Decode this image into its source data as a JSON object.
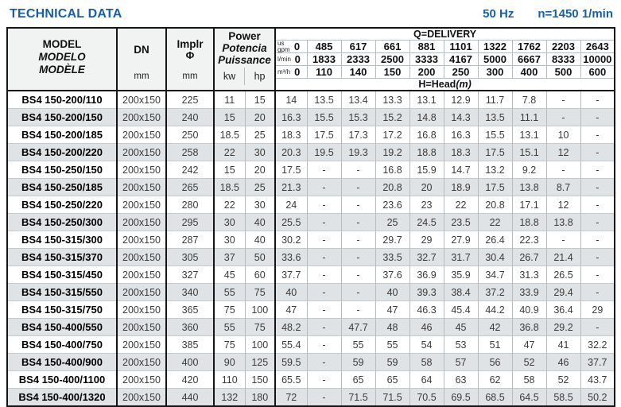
{
  "page": {
    "title": "TECHNICAL DATA",
    "frequency": "50 Hz",
    "speed": "n=1450 1/min"
  },
  "header": {
    "model_labels": [
      "MODEL",
      "MODELO",
      "MODÈLE"
    ],
    "dn_label": "DN",
    "dn_unit": "mm",
    "impeller_label": "Implr",
    "impeller_symbol": "Φ",
    "impeller_unit": "mm",
    "power_labels": [
      "Power",
      "Potencia",
      "Puissance"
    ],
    "power_units": [
      "kw",
      "hp"
    ]
  },
  "delivery": {
    "title": "Q=DELIVERY",
    "unit_rows": [
      {
        "label_line1": "us",
        "label_line2": "gpm",
        "zero": "0",
        "values": [
          "485",
          "617",
          "661",
          "881",
          "1101",
          "1322",
          "1762",
          "2203",
          "2643"
        ]
      },
      {
        "label_line1": "",
        "label_line2": "l/min",
        "zero": "0",
        "values": [
          "1833",
          "2333",
          "2500",
          "3333",
          "4167",
          "5000",
          "6667",
          "8333",
          "10000"
        ]
      },
      {
        "label_line1": "",
        "label_line2": "m³/h",
        "zero": "0",
        "values": [
          "110",
          "140",
          "150",
          "200",
          "250",
          "300",
          "400",
          "500",
          "600"
        ]
      }
    ],
    "head_label": "H=Head",
    "head_unit": "(m)"
  },
  "colors": {
    "accent_blue": "#1660a8",
    "stripe": "#dfe3e6",
    "grid_thin": "#b6bcc0",
    "grid_thick": "#151515"
  },
  "rows": [
    {
      "model": "BS4 150-200/110",
      "dn": "200x150",
      "impeller": "225",
      "kw": "11",
      "hp": "15",
      "head": [
        "14",
        "13.5",
        "13.4",
        "13.3",
        "13.1",
        "12.9",
        "11.7",
        "7.8",
        "-",
        "-"
      ]
    },
    {
      "model": "BS4 150-200/150",
      "dn": "200x150",
      "impeller": "240",
      "kw": "15",
      "hp": "20",
      "head": [
        "16.3",
        "15.5",
        "15.3",
        "15.2",
        "14.8",
        "14.3",
        "13.5",
        "11.1",
        "-",
        "-"
      ]
    },
    {
      "model": "BS4 150-200/185",
      "dn": "200x150",
      "impeller": "250",
      "kw": "18.5",
      "hp": "25",
      "head": [
        "18.3",
        "17.5",
        "17.3",
        "17.2",
        "16.8",
        "16.3",
        "15.5",
        "13.1",
        "10",
        "-"
      ]
    },
    {
      "model": "BS4 150-200/220",
      "dn": "200x150",
      "impeller": "258",
      "kw": "22",
      "hp": "30",
      "head": [
        "20.3",
        "19.5",
        "19.3",
        "19.2",
        "18.8",
        "18.3",
        "17.5",
        "15.1",
        "12",
        "-"
      ]
    },
    {
      "model": "BS4 150-250/150",
      "dn": "200x150",
      "impeller": "242",
      "kw": "15",
      "hp": "20",
      "head": [
        "17.5",
        "-",
        "-",
        "16.8",
        "15.9",
        "14.7",
        "13.2",
        "9.2",
        "-",
        "-"
      ]
    },
    {
      "model": "BS4 150-250/185",
      "dn": "200x150",
      "impeller": "265",
      "kw": "18.5",
      "hp": "25",
      "head": [
        "21.3",
        "-",
        "-",
        "20.8",
        "20",
        "18.9",
        "17.5",
        "13.8",
        "8.7",
        "-"
      ]
    },
    {
      "model": "BS4 150-250/220",
      "dn": "200x150",
      "impeller": "280",
      "kw": "22",
      "hp": "30",
      "head": [
        "24",
        "-",
        "-",
        "23.6",
        "23",
        "22",
        "20.8",
        "17.1",
        "12",
        "-"
      ]
    },
    {
      "model": "BS4 150-250/300",
      "dn": "200x150",
      "impeller": "295",
      "kw": "30",
      "hp": "40",
      "head": [
        "25.5",
        "-",
        "-",
        "25",
        "24.5",
        "23.5",
        "22",
        "18.8",
        "13.8",
        "-"
      ]
    },
    {
      "model": "BS4 150-315/300",
      "dn": "200x150",
      "impeller": "287",
      "kw": "30",
      "hp": "40",
      "head": [
        "30.2",
        "-",
        "-",
        "29.7",
        "29",
        "27.9",
        "26.4",
        "22.3",
        "-",
        "-"
      ]
    },
    {
      "model": "BS4 150-315/370",
      "dn": "200x150",
      "impeller": "305",
      "kw": "37",
      "hp": "50",
      "head": [
        "33.6",
        "-",
        "-",
        "33.5",
        "32.7",
        "31.7",
        "30.4",
        "26.7",
        "21.4",
        "-"
      ]
    },
    {
      "model": "BS4 150-315/450",
      "dn": "200x150",
      "impeller": "327",
      "kw": "45",
      "hp": "60",
      "head": [
        "37.7",
        "-",
        "-",
        "37.6",
        "36.9",
        "35.9",
        "34.7",
        "31.3",
        "26.5",
        "-"
      ]
    },
    {
      "model": "BS4 150-315/550",
      "dn": "200x150",
      "impeller": "340",
      "kw": "55",
      "hp": "75",
      "head": [
        "40",
        "-",
        "-",
        "40",
        "39.3",
        "38.4",
        "37.2",
        "33.9",
        "29.4",
        "-"
      ]
    },
    {
      "model": "BS4 150-315/750",
      "dn": "200x150",
      "impeller": "365",
      "kw": "75",
      "hp": "100",
      "head": [
        "47",
        "-",
        "-",
        "47",
        "46.3",
        "45.4",
        "44.2",
        "40.9",
        "36.4",
        "29"
      ]
    },
    {
      "model": "BS4 150-400/550",
      "dn": "200x150",
      "impeller": "360",
      "kw": "55",
      "hp": "75",
      "head": [
        "48.2",
        "-",
        "47.7",
        "48",
        "46",
        "45",
        "42",
        "36.8",
        "29.2",
        "-"
      ]
    },
    {
      "model": "BS4 150-400/750",
      "dn": "200x150",
      "impeller": "385",
      "kw": "75",
      "hp": "100",
      "head": [
        "55.4",
        "-",
        "55",
        "55",
        "54",
        "53",
        "51",
        "47",
        "41",
        "32.2"
      ]
    },
    {
      "model": "BS4 150-400/900",
      "dn": "200x150",
      "impeller": "400",
      "kw": "90",
      "hp": "125",
      "head": [
        "59.5",
        "-",
        "59",
        "59",
        "58",
        "57",
        "56",
        "52",
        "46",
        "37.7"
      ]
    },
    {
      "model": "BS4 150-400/1100",
      "dn": "200x150",
      "impeller": "420",
      "kw": "110",
      "hp": "150",
      "head": [
        "65.5",
        "-",
        "65",
        "65",
        "64",
        "63",
        "62",
        "58",
        "52",
        "43.7"
      ]
    },
    {
      "model": "BS4 150-400/1320",
      "dn": "200x150",
      "impeller": "440",
      "kw": "132",
      "hp": "180",
      "head": [
        "72",
        "-",
        "71.5",
        "71.5",
        "70.5",
        "69.5",
        "68.5",
        "64.5",
        "58.5",
        "50.2"
      ]
    }
  ]
}
